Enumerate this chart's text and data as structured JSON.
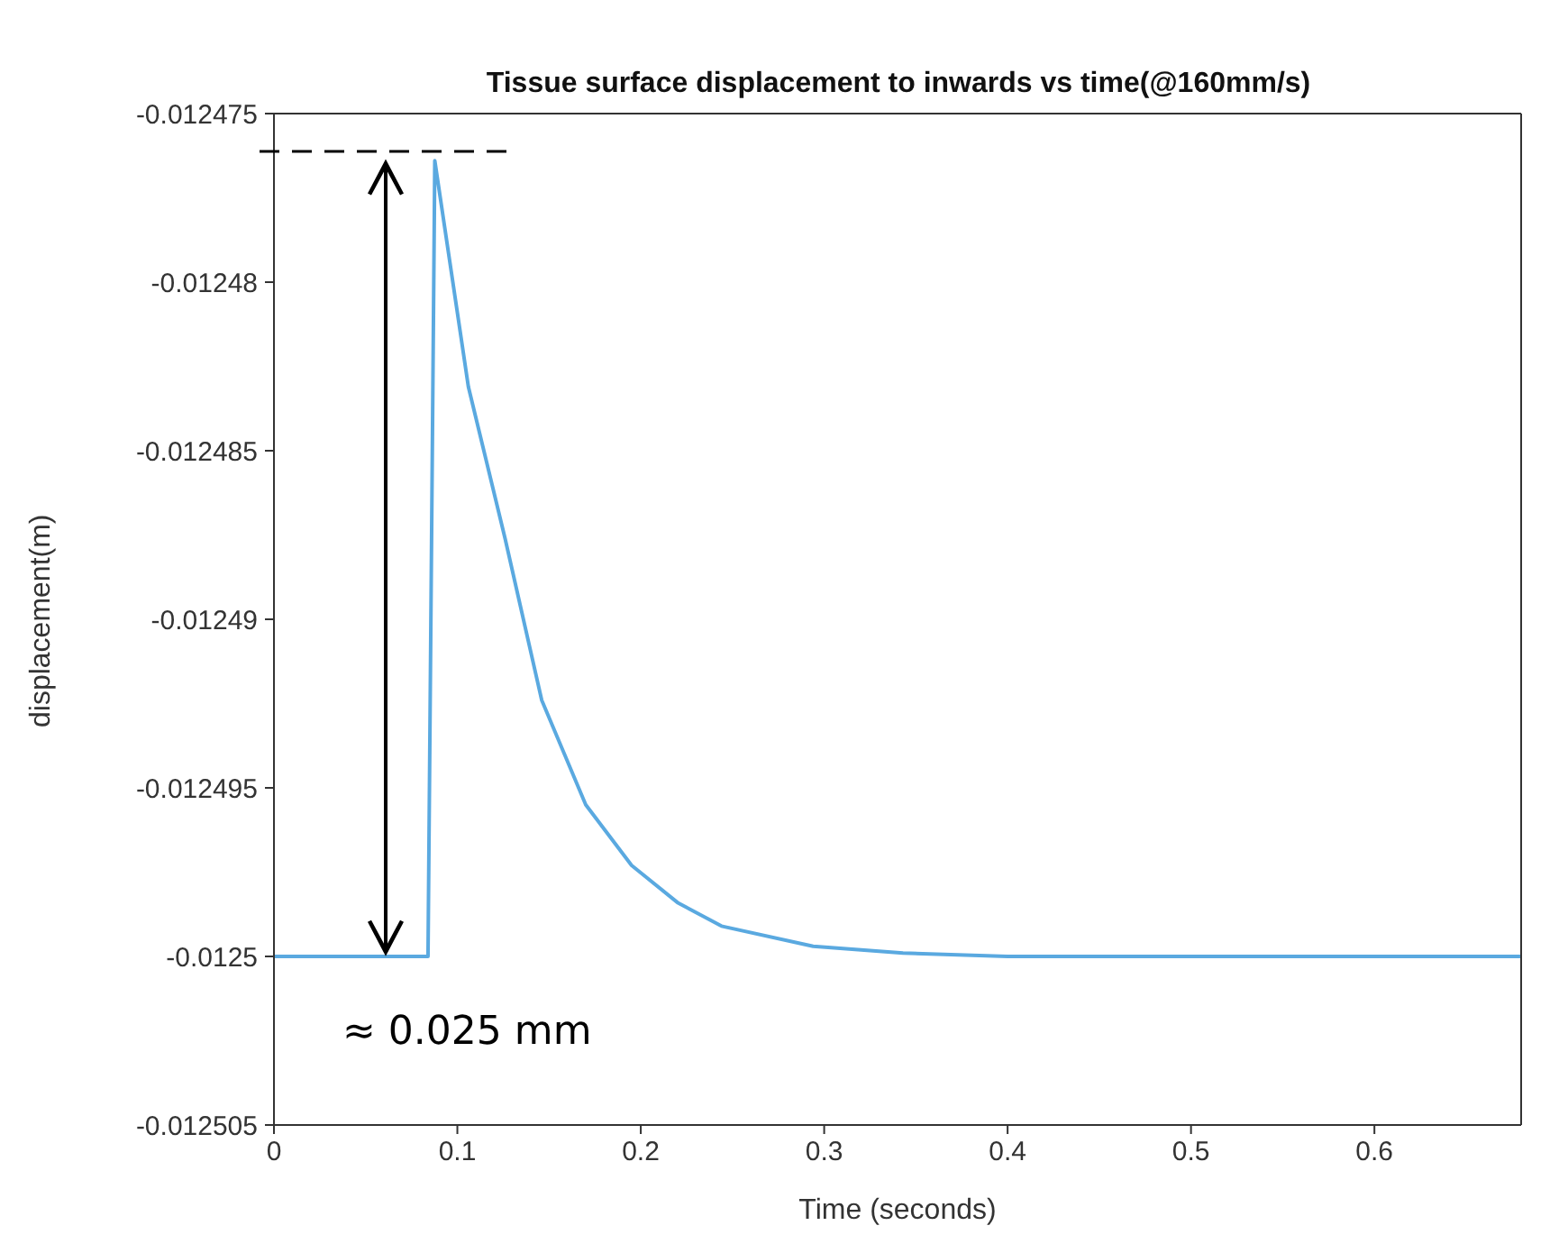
{
  "chart_data": {
    "type": "line",
    "title": "Tissue surface displacement to inwards vs time(@160mm/s)",
    "xlabel": "Time (seconds)",
    "ylabel": "displacement(m)",
    "annotations": [
      "≈ 0.025 mm"
    ],
    "x": [
      0,
      0.084,
      0.0877,
      0.106,
      0.126,
      0.146,
      0.17,
      0.195,
      0.22,
      0.244,
      0.294,
      0.343,
      0.4,
      0.5,
      0.68
    ],
    "series": [
      {
        "color": "#5aa9e0",
        "values": [
          -0.0125,
          -0.0125,
          -0.0124764,
          -0.0124831,
          -0.0124876,
          -0.0124924,
          -0.0124955,
          -0.0124973,
          -0.0124984,
          -0.0124991,
          -0.0124997,
          -0.0124999,
          -0.0125,
          -0.0125,
          -0.0125
        ]
      }
    ],
    "xlim": [
      0,
      0.68
    ],
    "xticks": [
      0,
      0.1,
      0.2,
      0.3,
      0.4,
      0.5,
      0.6
    ],
    "ylim": [
      -0.012505,
      -0.012475
    ],
    "yticks": [
      -0.012505,
      -0.0125,
      -0.012495,
      -0.01249,
      -0.012485,
      -0.01248,
      -0.012475
    ],
    "grid": false,
    "legend": false,
    "marker": "none",
    "line_style": "solid"
  }
}
